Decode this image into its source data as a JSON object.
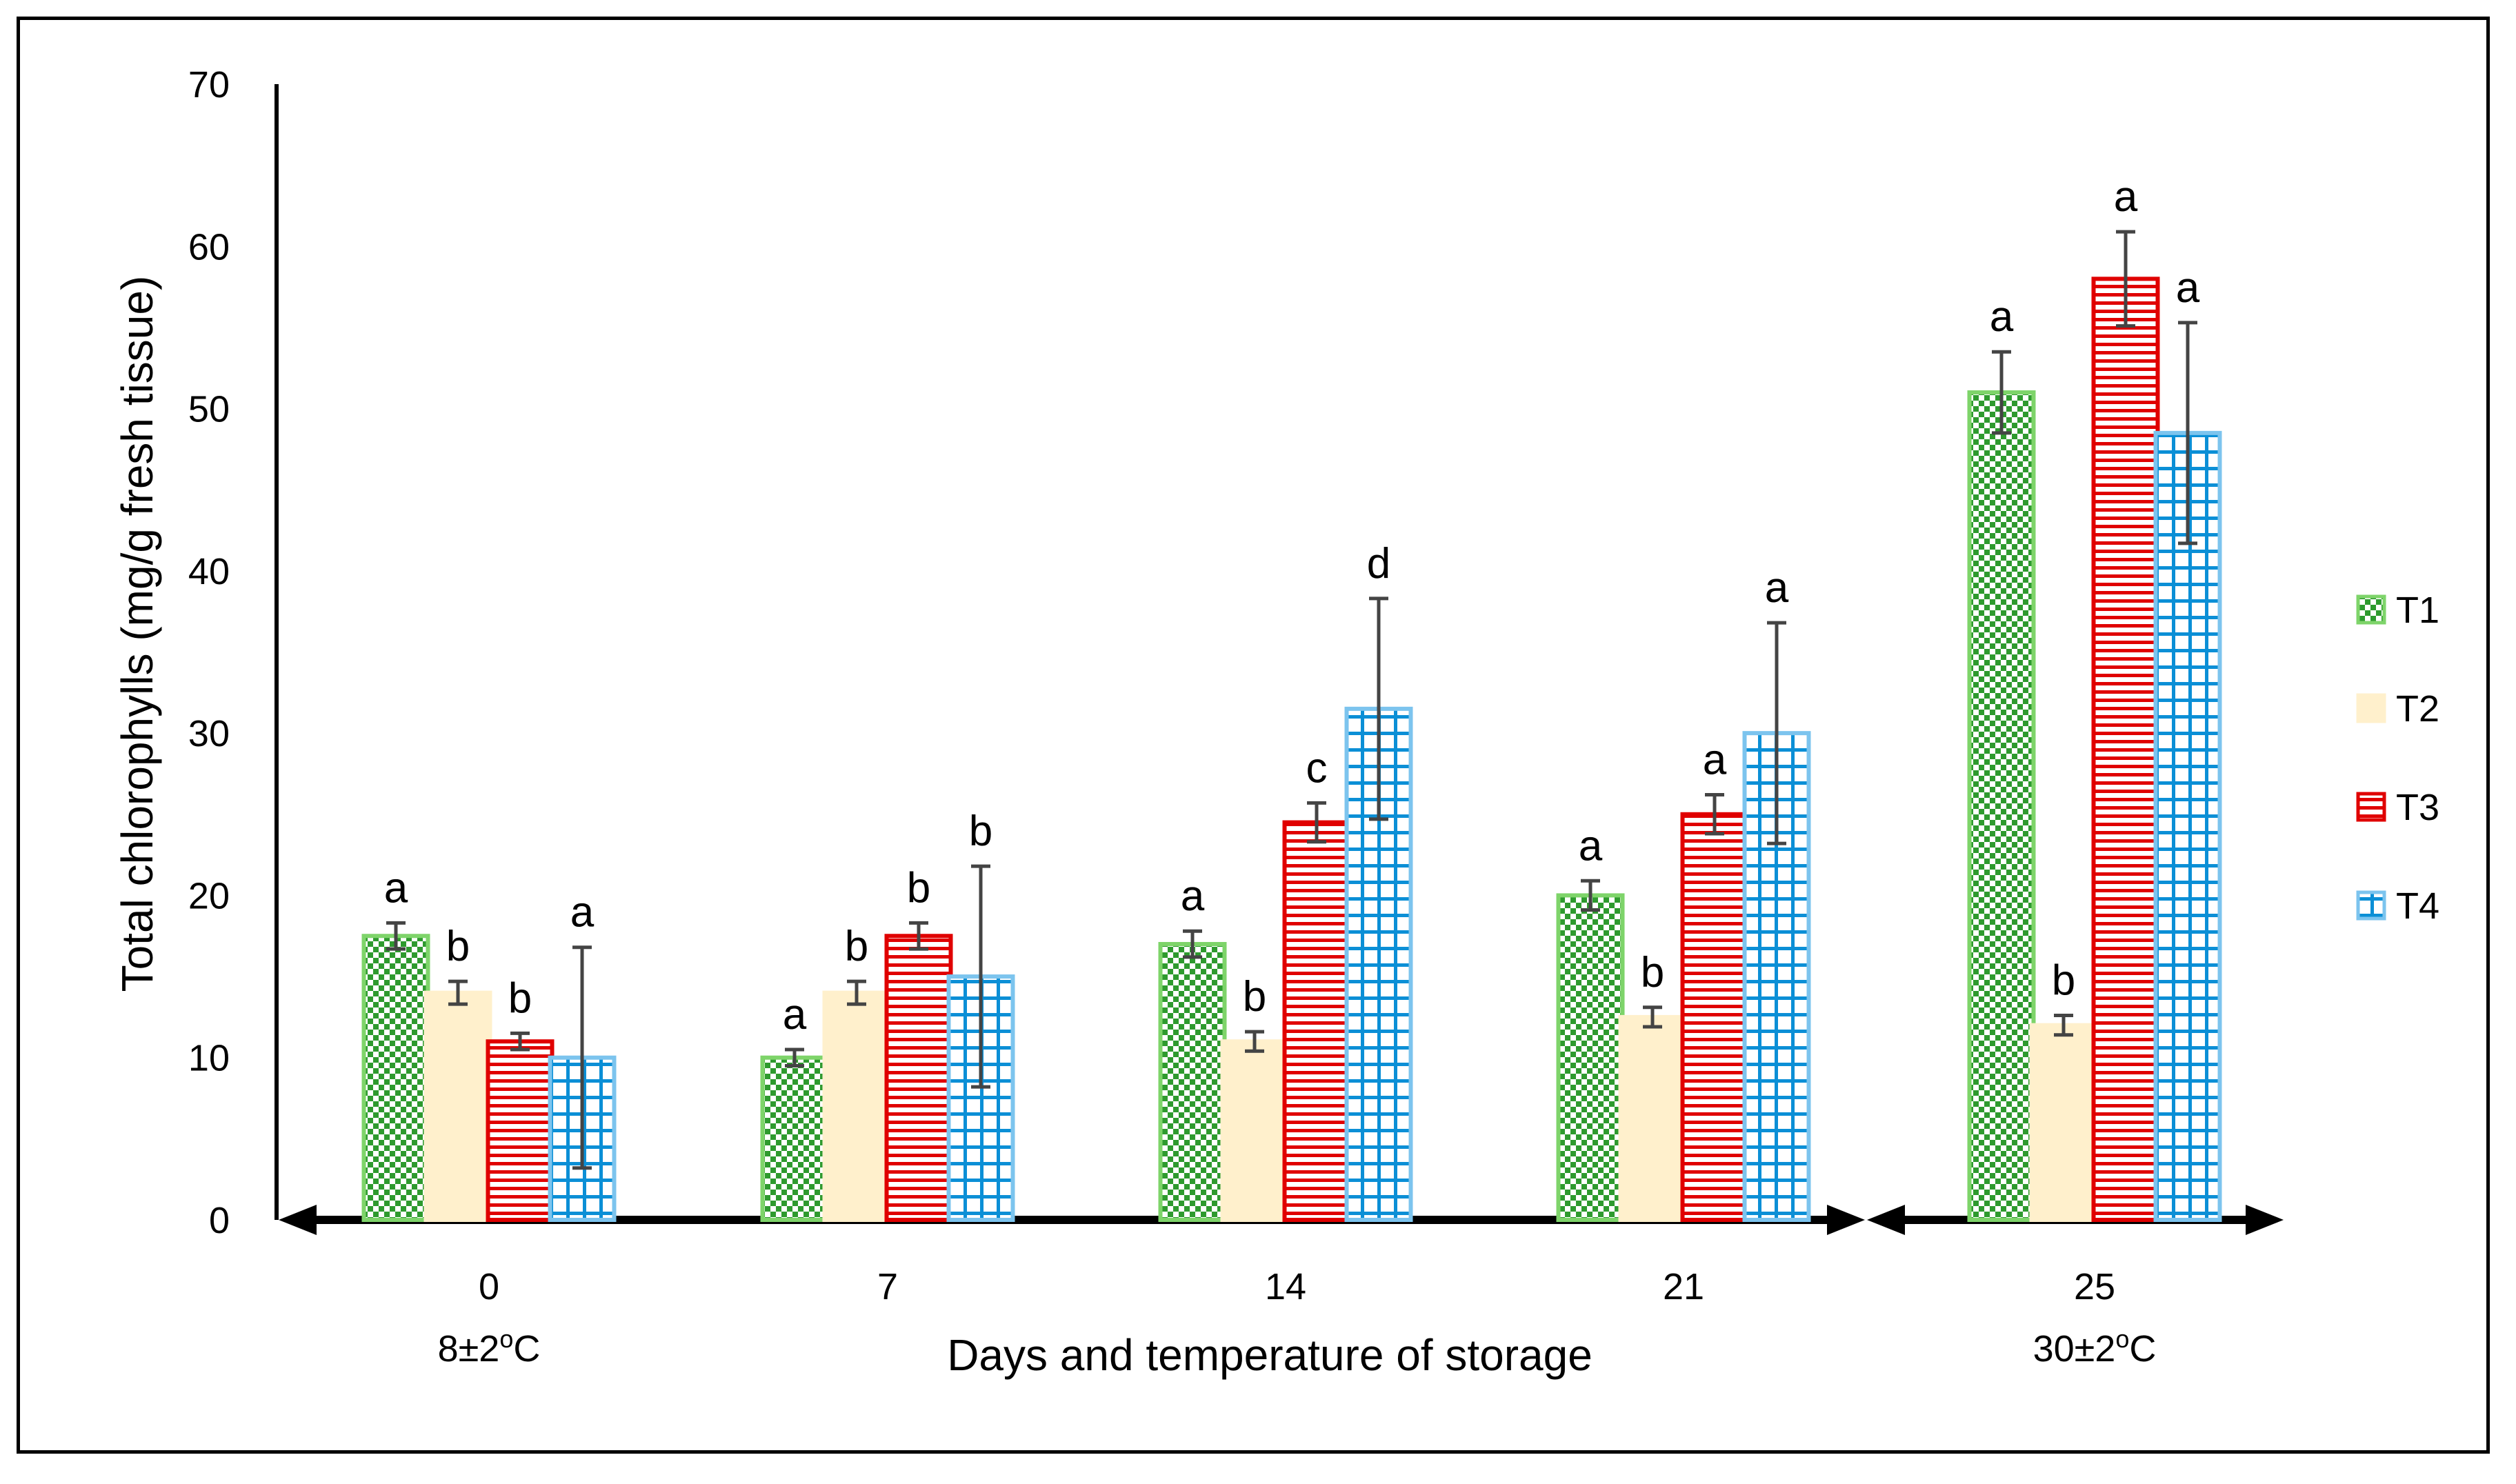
{
  "chart_data": {
    "type": "bar",
    "title": "",
    "ylabel": "Total chlorophylls (mg/g fresh tissue)",
    "xlabel": "Days and temperature of storage",
    "ylim": [
      0,
      70
    ],
    "yticks": [
      0,
      10,
      20,
      30,
      40,
      50,
      60,
      70
    ],
    "categories": [
      "0",
      "7",
      "14",
      "21",
      "25"
    ],
    "temperature_labels": [
      {
        "category": "0",
        "text": "8±2",
        "sup": "o",
        "unit": "C"
      },
      {
        "category": "25",
        "text": "30±2",
        "sup": "o",
        "unit": "C"
      }
    ],
    "legend_position": "right",
    "series": [
      {
        "name": "T1",
        "pattern": "checker",
        "color": "#3aa23a",
        "border": "#7ed46a",
        "values": [
          17.5,
          10.0,
          17.0,
          20.0,
          51.0
        ],
        "errors": [
          0.8,
          0.5,
          0.8,
          0.9,
          2.5
        ],
        "labels": [
          "a",
          "a",
          "a",
          "a",
          "a"
        ]
      },
      {
        "name": "T2",
        "pattern": "solid",
        "color": "#fff0cc",
        "border": "#fff0cc",
        "values": [
          14.0,
          14.0,
          11.0,
          12.5,
          12.0
        ],
        "errors": [
          0.7,
          0.7,
          0.6,
          0.6,
          0.6
        ],
        "labels": [
          "b",
          "b",
          "b",
          "b",
          "b"
        ]
      },
      {
        "name": "T3",
        "pattern": "horizontal-lines",
        "color": "#e00000",
        "border": "#e00000",
        "values": [
          11.0,
          17.5,
          24.5,
          25.0,
          58.0
        ],
        "errors": [
          0.5,
          0.8,
          1.2,
          1.2,
          2.9
        ],
        "labels": [
          "b",
          "b",
          "c",
          "a",
          "a"
        ]
      },
      {
        "name": "T4",
        "pattern": "grid",
        "color": "#0b8fd6",
        "border": "#7cc4ee",
        "values": [
          10.0,
          15.0,
          31.5,
          30.0,
          48.5
        ],
        "errors": [
          6.8,
          6.8,
          6.8,
          6.8,
          6.8
        ],
        "labels": [
          "a",
          "b",
          "d",
          "a",
          "a"
        ]
      }
    ]
  }
}
